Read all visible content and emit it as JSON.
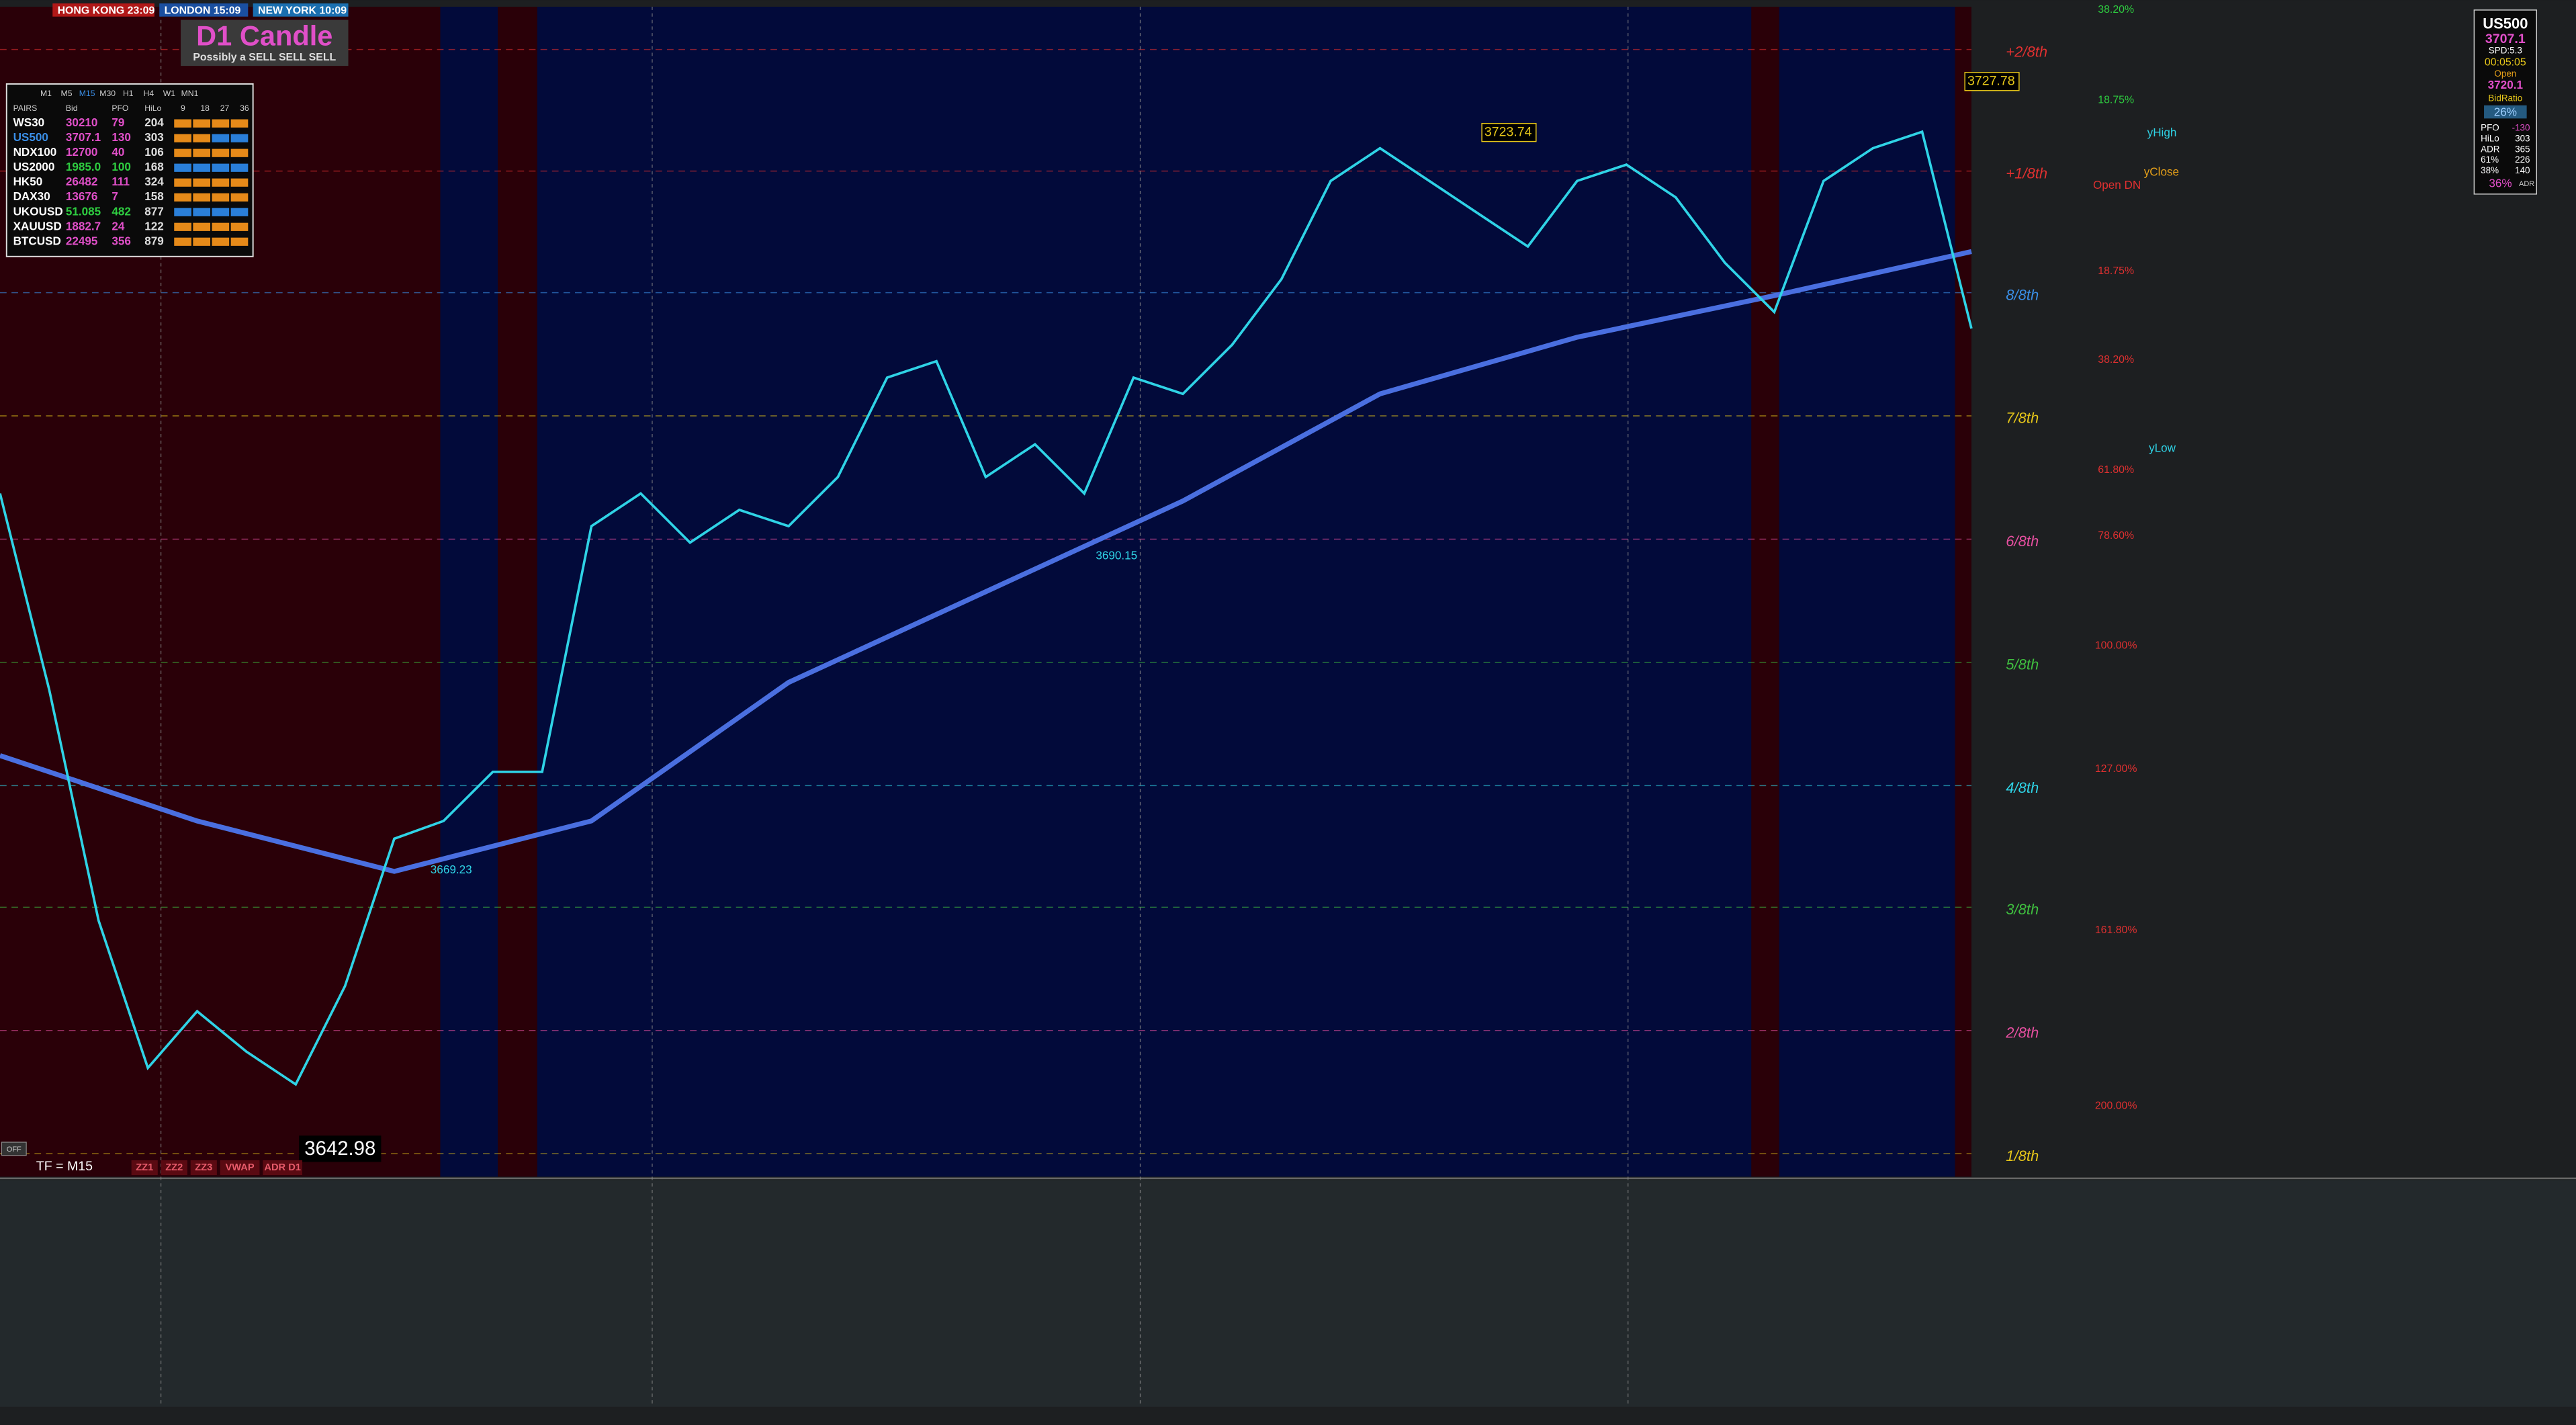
{
  "sessions": [
    "HONG KONG 23:09",
    "LONDON 15:09",
    "NEW YORK 10:09"
  ],
  "banner": {
    "title": "D1 Candle",
    "subtitle": "Possibly a SELL SELL SELL"
  },
  "watchlist": {
    "timeframes": [
      "M1",
      "M5",
      "M15",
      "M30",
      "H1",
      "H4",
      "W1",
      "MN1"
    ],
    "columns": [
      "PAIRS",
      "Bid",
      "PFO",
      "HiLo",
      "9",
      "18",
      "27",
      "36"
    ],
    "rows": [
      [
        "WS30",
        "30210",
        "79",
        "204"
      ],
      [
        "US500",
        "3707.1",
        "130",
        "303"
      ],
      [
        "NDX100",
        "12700",
        "40",
        "106"
      ],
      [
        "US2000",
        "1985.0",
        "100",
        "168"
      ],
      [
        "HK50",
        "26482",
        "111",
        "324"
      ],
      [
        "DAX30",
        "13676",
        "7",
        "158"
      ],
      [
        "UKOUSD",
        "51.085",
        "482",
        "877"
      ],
      [
        "XAUUSD",
        "1882.7",
        "24",
        "122"
      ],
      [
        "BTCUSD",
        "22495",
        "356",
        "879"
      ]
    ]
  },
  "symbol_panel": {
    "symbol": "US500",
    "bid": "3707.1",
    "spread": "SPD:5.3",
    "timer": "00:05:05",
    "open_label": "Open",
    "open": "3720.1",
    "ratio_label": "BidRatio",
    "ratio": "26%",
    "stats": [
      [
        "PFO",
        "-130"
      ],
      [
        "HiLo",
        "303"
      ],
      [
        "ADR",
        "365"
      ],
      [
        "61%",
        "226"
      ],
      [
        "38%",
        "140"
      ]
    ],
    "adr_pct": "36%",
    "adr_label": "ADR"
  },
  "levels": [
    {
      "label": "+2/8th",
      "color": "#e03030"
    },
    {
      "label": "+1/8th",
      "color": "#e03030"
    },
    {
      "label": "8/8th",
      "color": "#3a8ee6"
    },
    {
      "label": "7/8th",
      "color": "#e6c619"
    },
    {
      "label": "6/8th",
      "color": "#e64fa0"
    },
    {
      "label": "5/8th",
      "color": "#3fbf3f"
    },
    {
      "label": "4/8th",
      "color": "#2fd3e6"
    },
    {
      "label": "3/8th",
      "color": "#3fbf3f"
    },
    {
      "label": "2/8th",
      "color": "#e64fa0"
    },
    {
      "label": "1/8th",
      "color": "#e6c619"
    }
  ],
  "fib_levels": [
    {
      "label": "38.20%",
      "color": "#2ecc40"
    },
    {
      "label": "18.75%",
      "color": "#2ecc40"
    },
    {
      "label": "18.75%",
      "color": "#e03030"
    },
    {
      "label": "38.20%",
      "color": "#e03030"
    },
    {
      "label": "61.80%",
      "color": "#e03030"
    },
    {
      "label": "78.60%",
      "color": "#e03030"
    },
    {
      "label": "100.00%",
      "color": "#e03030"
    },
    {
      "label": "127.00%",
      "color": "#e03030"
    },
    {
      "label": "161.80%",
      "color": "#e03030"
    },
    {
      "label": "200.00%",
      "color": "#e03030"
    }
  ],
  "markers": {
    "y_high": "yHigh",
    "y_close": "yClose",
    "open_dn": "Open DN",
    "y_low": "yLow"
  },
  "price_labels": [
    "3727.78",
    "3723.74",
    "3642.98",
    "3690.15",
    "3669.23"
  ],
  "toolbar": {
    "timeframe": "TF = M15",
    "buttons": [
      "ZZ1",
      "ZZ2",
      "ZZ3",
      "VWAP",
      "ADR D1"
    ],
    "off": "OFF"
  },
  "price_chart": {
    "ylim": [
      3640.9,
      3733.5
    ],
    "close": [
      3695.0,
      3679.4,
      3661.1,
      3649.4,
      3653.9,
      3650.7,
      3648.1,
      3655.9,
      3667.6,
      3669.0,
      3672.9,
      3672.9,
      3692.4,
      3695.0,
      3691.1,
      3693.7,
      3692.4,
      3696.3,
      3704.2,
      3705.5,
      3696.3,
      3698.9,
      3695.0,
      3704.2,
      3702.9,
      3706.8,
      3712.0,
      3719.8,
      3722.4,
      3719.8,
      3717.2,
      3714.6,
      3719.8,
      3721.1,
      3718.5,
      3713.3,
      3709.4,
      3719.8,
      3722.4,
      3723.7,
      3708.1
    ],
    "ma": [
      3674.2,
      3669.0,
      3665.0,
      3669.0,
      3680.0,
      3687.2,
      3694.4,
      3702.9,
      3707.4,
      3710.7,
      3714.2
    ]
  }
}
